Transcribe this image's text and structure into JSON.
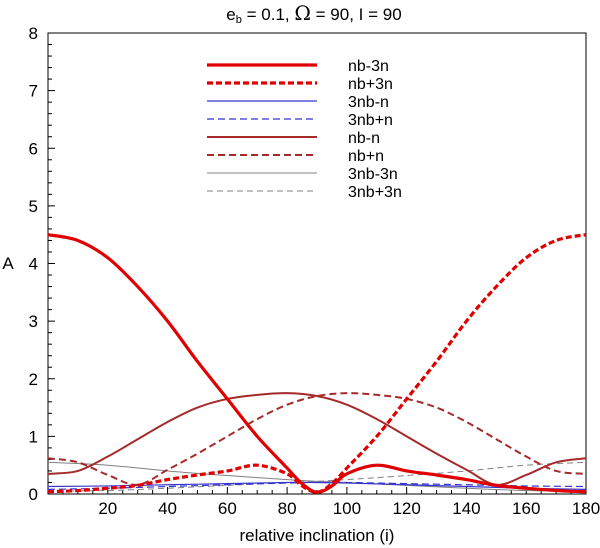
{
  "chart_data": {
    "type": "line",
    "title_parts": {
      "e": "e",
      "sub": "b",
      "rest": " = 0.1, ",
      "omega": "Ω",
      "tail": " = 90, I = 90"
    },
    "title": "eb = 0.1, Ω = 90, I = 90",
    "xlabel": "relative inclination (i)",
    "ylabel": "A",
    "xlim": [
      0,
      180
    ],
    "ylim": [
      0,
      8
    ],
    "xticks": [
      20,
      40,
      60,
      80,
      100,
      120,
      140,
      160,
      180
    ],
    "yticks": [
      0,
      1,
      2,
      3,
      4,
      5,
      6,
      7,
      8
    ],
    "legend_position": "top-center",
    "series": [
      {
        "name": "nb-3n",
        "color": "#e00000",
        "dash": "solid",
        "width": 3.2,
        "points": [
          [
            0,
            4.5
          ],
          [
            10,
            4.4
          ],
          [
            20,
            4.1
          ],
          [
            30,
            3.6
          ],
          [
            40,
            3.0
          ],
          [
            50,
            2.3
          ],
          [
            60,
            1.65
          ],
          [
            70,
            1.0
          ],
          [
            80,
            0.45
          ],
          [
            85,
            0.18
          ],
          [
            90,
            0.03
          ],
          [
            95,
            0.14
          ],
          [
            100,
            0.35
          ],
          [
            110,
            0.5
          ],
          [
            120,
            0.4
          ],
          [
            130,
            0.33
          ],
          [
            140,
            0.25
          ],
          [
            150,
            0.15
          ],
          [
            160,
            0.1
          ],
          [
            170,
            0.06
          ],
          [
            180,
            0.04
          ]
        ]
      },
      {
        "name": "nb+3n",
        "color": "#e00000",
        "dash": "6,3",
        "width": 3.2,
        "points": [
          [
            0,
            0.04
          ],
          [
            10,
            0.06
          ],
          [
            20,
            0.1
          ],
          [
            30,
            0.15
          ],
          [
            40,
            0.25
          ],
          [
            50,
            0.33
          ],
          [
            60,
            0.4
          ],
          [
            70,
            0.5
          ],
          [
            80,
            0.35
          ],
          [
            85,
            0.14
          ],
          [
            90,
            0.03
          ],
          [
            95,
            0.18
          ],
          [
            100,
            0.45
          ],
          [
            110,
            1.0
          ],
          [
            120,
            1.65
          ],
          [
            130,
            2.3
          ],
          [
            140,
            3.0
          ],
          [
            150,
            3.6
          ],
          [
            160,
            4.1
          ],
          [
            170,
            4.4
          ],
          [
            180,
            4.5
          ]
        ]
      },
      {
        "name": "3nb-n",
        "color": "#3434d0",
        "dash": "solid",
        "width": 1.2,
        "points": [
          [
            0,
            0.13
          ],
          [
            20,
            0.14
          ],
          [
            40,
            0.16
          ],
          [
            60,
            0.18
          ],
          [
            80,
            0.2
          ],
          [
            90,
            0.2
          ],
          [
            100,
            0.19
          ],
          [
            120,
            0.16
          ],
          [
            140,
            0.13
          ],
          [
            160,
            0.1
          ],
          [
            180,
            0.08
          ]
        ]
      },
      {
        "name": "3nb+n",
        "color": "#3434d0",
        "dash": "7,4",
        "width": 1.2,
        "points": [
          [
            0,
            0.08
          ],
          [
            20,
            0.1
          ],
          [
            40,
            0.13
          ],
          [
            60,
            0.16
          ],
          [
            80,
            0.19
          ],
          [
            90,
            0.2
          ],
          [
            100,
            0.2
          ],
          [
            120,
            0.18
          ],
          [
            140,
            0.16
          ],
          [
            160,
            0.14
          ],
          [
            180,
            0.13
          ]
        ]
      },
      {
        "name": "nb-n",
        "color": "#a52a2a",
        "dash": "solid",
        "width": 2.0,
        "points": [
          [
            0,
            0.35
          ],
          [
            10,
            0.4
          ],
          [
            20,
            0.65
          ],
          [
            30,
            0.95
          ],
          [
            40,
            1.25
          ],
          [
            50,
            1.5
          ],
          [
            60,
            1.65
          ],
          [
            70,
            1.72
          ],
          [
            80,
            1.75
          ],
          [
            90,
            1.7
          ],
          [
            100,
            1.55
          ],
          [
            110,
            1.3
          ],
          [
            120,
            1.0
          ],
          [
            130,
            0.7
          ],
          [
            140,
            0.42
          ],
          [
            150,
            0.16
          ],
          [
            160,
            0.33
          ],
          [
            170,
            0.55
          ],
          [
            180,
            0.62
          ]
        ]
      },
      {
        "name": "nb+n",
        "color": "#a52a2a",
        "dash": "7,4",
        "width": 2.0,
        "points": [
          [
            0,
            0.62
          ],
          [
            10,
            0.55
          ],
          [
            20,
            0.33
          ],
          [
            30,
            0.16
          ],
          [
            40,
            0.42
          ],
          [
            50,
            0.7
          ],
          [
            60,
            1.0
          ],
          [
            70,
            1.3
          ],
          [
            80,
            1.55
          ],
          [
            90,
            1.7
          ],
          [
            100,
            1.75
          ],
          [
            110,
            1.72
          ],
          [
            120,
            1.65
          ],
          [
            130,
            1.5
          ],
          [
            140,
            1.25
          ],
          [
            150,
            0.95
          ],
          [
            160,
            0.65
          ],
          [
            170,
            0.4
          ],
          [
            180,
            0.35
          ]
        ]
      },
      {
        "name": "3nb-3n",
        "color": "#808080",
        "dash": "solid",
        "width": 1.0,
        "points": [
          [
            0,
            0.55
          ],
          [
            20,
            0.5
          ],
          [
            40,
            0.4
          ],
          [
            60,
            0.32
          ],
          [
            80,
            0.25
          ],
          [
            90,
            0.22
          ],
          [
            100,
            0.2
          ],
          [
            120,
            0.15
          ],
          [
            140,
            0.1
          ],
          [
            160,
            0.06
          ],
          [
            180,
            0.05
          ]
        ]
      },
      {
        "name": "3nb+3n",
        "color": "#808080",
        "dash": "6,4",
        "width": 1.0,
        "points": [
          [
            0,
            0.05
          ],
          [
            20,
            0.06
          ],
          [
            40,
            0.1
          ],
          [
            60,
            0.15
          ],
          [
            80,
            0.2
          ],
          [
            90,
            0.22
          ],
          [
            100,
            0.25
          ],
          [
            120,
            0.32
          ],
          [
            140,
            0.4
          ],
          [
            160,
            0.5
          ],
          [
            180,
            0.55
          ]
        ]
      }
    ]
  }
}
